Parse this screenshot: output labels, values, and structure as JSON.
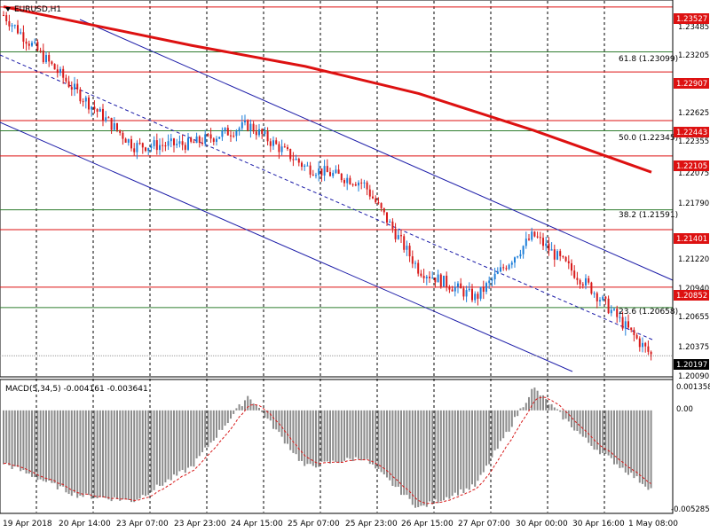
{
  "symbol_title": "EURUSD,H1",
  "menu_icon": "triangle-down-icon",
  "colors": {
    "bull": "#1e7fd9",
    "bear": "#d81b1b",
    "ma": "#dd1111",
    "channel": "#1c1ca8",
    "hline_red": "#dd1111",
    "hline_green": "#2f7d2f",
    "hist": "#8c8c8c",
    "signal": "#d81b1b",
    "grid": "#000000"
  },
  "price_axis": {
    "ticks": [
      "1.23485",
      "1.23205",
      "1.22625",
      "1.22355",
      "1.22075",
      "1.21790",
      "1.21220",
      "1.20940",
      "1.20655",
      "1.20375",
      "1.20090"
    ],
    "min": 1.2003,
    "max": 1.2356
  },
  "level_labels": [
    "1.23527",
    "1.22907",
    "1.22443",
    "1.22105",
    "1.21401",
    "1.20852"
  ],
  "current_price": "1.20197",
  "fib_labels": [
    "61.8 (1.23099)",
    "50.0 (1.22345)",
    "38.2 (1.21591)",
    "23.6 (1.20658)"
  ],
  "macd": {
    "title": "MACD(5,34,5) -0.004161 -0.003641",
    "ticks": [
      "0.001358",
      "0.00",
      "-0.005285"
    ]
  },
  "time_axis": [
    "19 Apr 2018",
    "20 Apr 14:00",
    "23 Apr 07:00",
    "23 Apr 23:00",
    "24 Apr 15:00",
    "25 Apr 07:00",
    "25 Apr 23:00",
    "26 Apr 15:00",
    "27 Apr 07:00",
    "30 Apr 00:00",
    "30 Apr 16:00",
    "1 May 08:00"
  ],
  "chart_data": {
    "type": "candlestick",
    "symbol": "EURUSD",
    "timeframe": "H1",
    "close_path": [
      {
        "t": "19 Apr 2018",
        "price": 1.2345
      },
      {
        "t": "20 Apr 14:00",
        "price": 1.2272
      },
      {
        "t": "23 Apr 07:00",
        "price": 1.222
      },
      {
        "t": "23 Apr 23:00",
        "price": 1.2222
      },
      {
        "t": "24 Apr 15:00",
        "price": 1.224
      },
      {
        "t": "25 Apr 07:00",
        "price": 1.22
      },
      {
        "t": "25 Apr 23:00",
        "price": 1.2185
      },
      {
        "t": "26 Apr 15:00",
        "price": 1.2102
      },
      {
        "t": "27 Apr 07:00",
        "price": 1.2075
      },
      {
        "t": "30 Apr 00:00",
        "price": 1.2135
      },
      {
        "t": "30 Apr 16:00",
        "price": 1.2085
      },
      {
        "t": "1 May 08:00",
        "price": 1.202
      }
    ],
    "moving_average": [
      {
        "t": "19 Apr 2018",
        "price": 1.2353
      },
      {
        "t": "23 Apr 23:00",
        "price": 1.2316
      },
      {
        "t": "25 Apr 07:00",
        "price": 1.2296
      },
      {
        "t": "26 Apr 15:00",
        "price": 1.227
      },
      {
        "t": "30 Apr 00:00",
        "price": 1.2235
      },
      {
        "t": "1 May 08:00",
        "price": 1.2195
      }
    ],
    "horizontal_levels": [
      1.23527,
      1.22907,
      1.22443,
      1.22105,
      1.21401,
      1.20852
    ],
    "fibonacci": [
      {
        "level": 61.8,
        "price": 1.23099
      },
      {
        "level": 50.0,
        "price": 1.22345
      },
      {
        "level": 38.2,
        "price": 1.21591
      },
      {
        "level": 23.6,
        "price": 1.20658
      }
    ],
    "macd_histogram": [
      {
        "t": "19 Apr 2018",
        "value": -0.0028
      },
      {
        "t": "20 Apr 14:00",
        "value": -0.0045
      },
      {
        "t": "23 Apr 07:00",
        "value": -0.0048
      },
      {
        "t": "23 Apr 23:00",
        "value": -0.003
      },
      {
        "t": "24 Apr 15:00",
        "value": 0.0008
      },
      {
        "t": "25 Apr 07:00",
        "value": -0.003
      },
      {
        "t": "25 Apr 23:00",
        "value": -0.0025
      },
      {
        "t": "26 Apr 15:00",
        "value": -0.0052
      },
      {
        "t": "27 Apr 07:00",
        "value": -0.004
      },
      {
        "t": "30 Apr 00:00",
        "value": 0.0012
      },
      {
        "t": "30 Apr 16:00",
        "value": -0.0018
      },
      {
        "t": "1 May 08:00",
        "value": -0.0042
      }
    ],
    "ylim_price": [
      1.2003,
      1.2356
    ],
    "ylim_macd": [
      -0.005285,
      0.001358
    ]
  }
}
